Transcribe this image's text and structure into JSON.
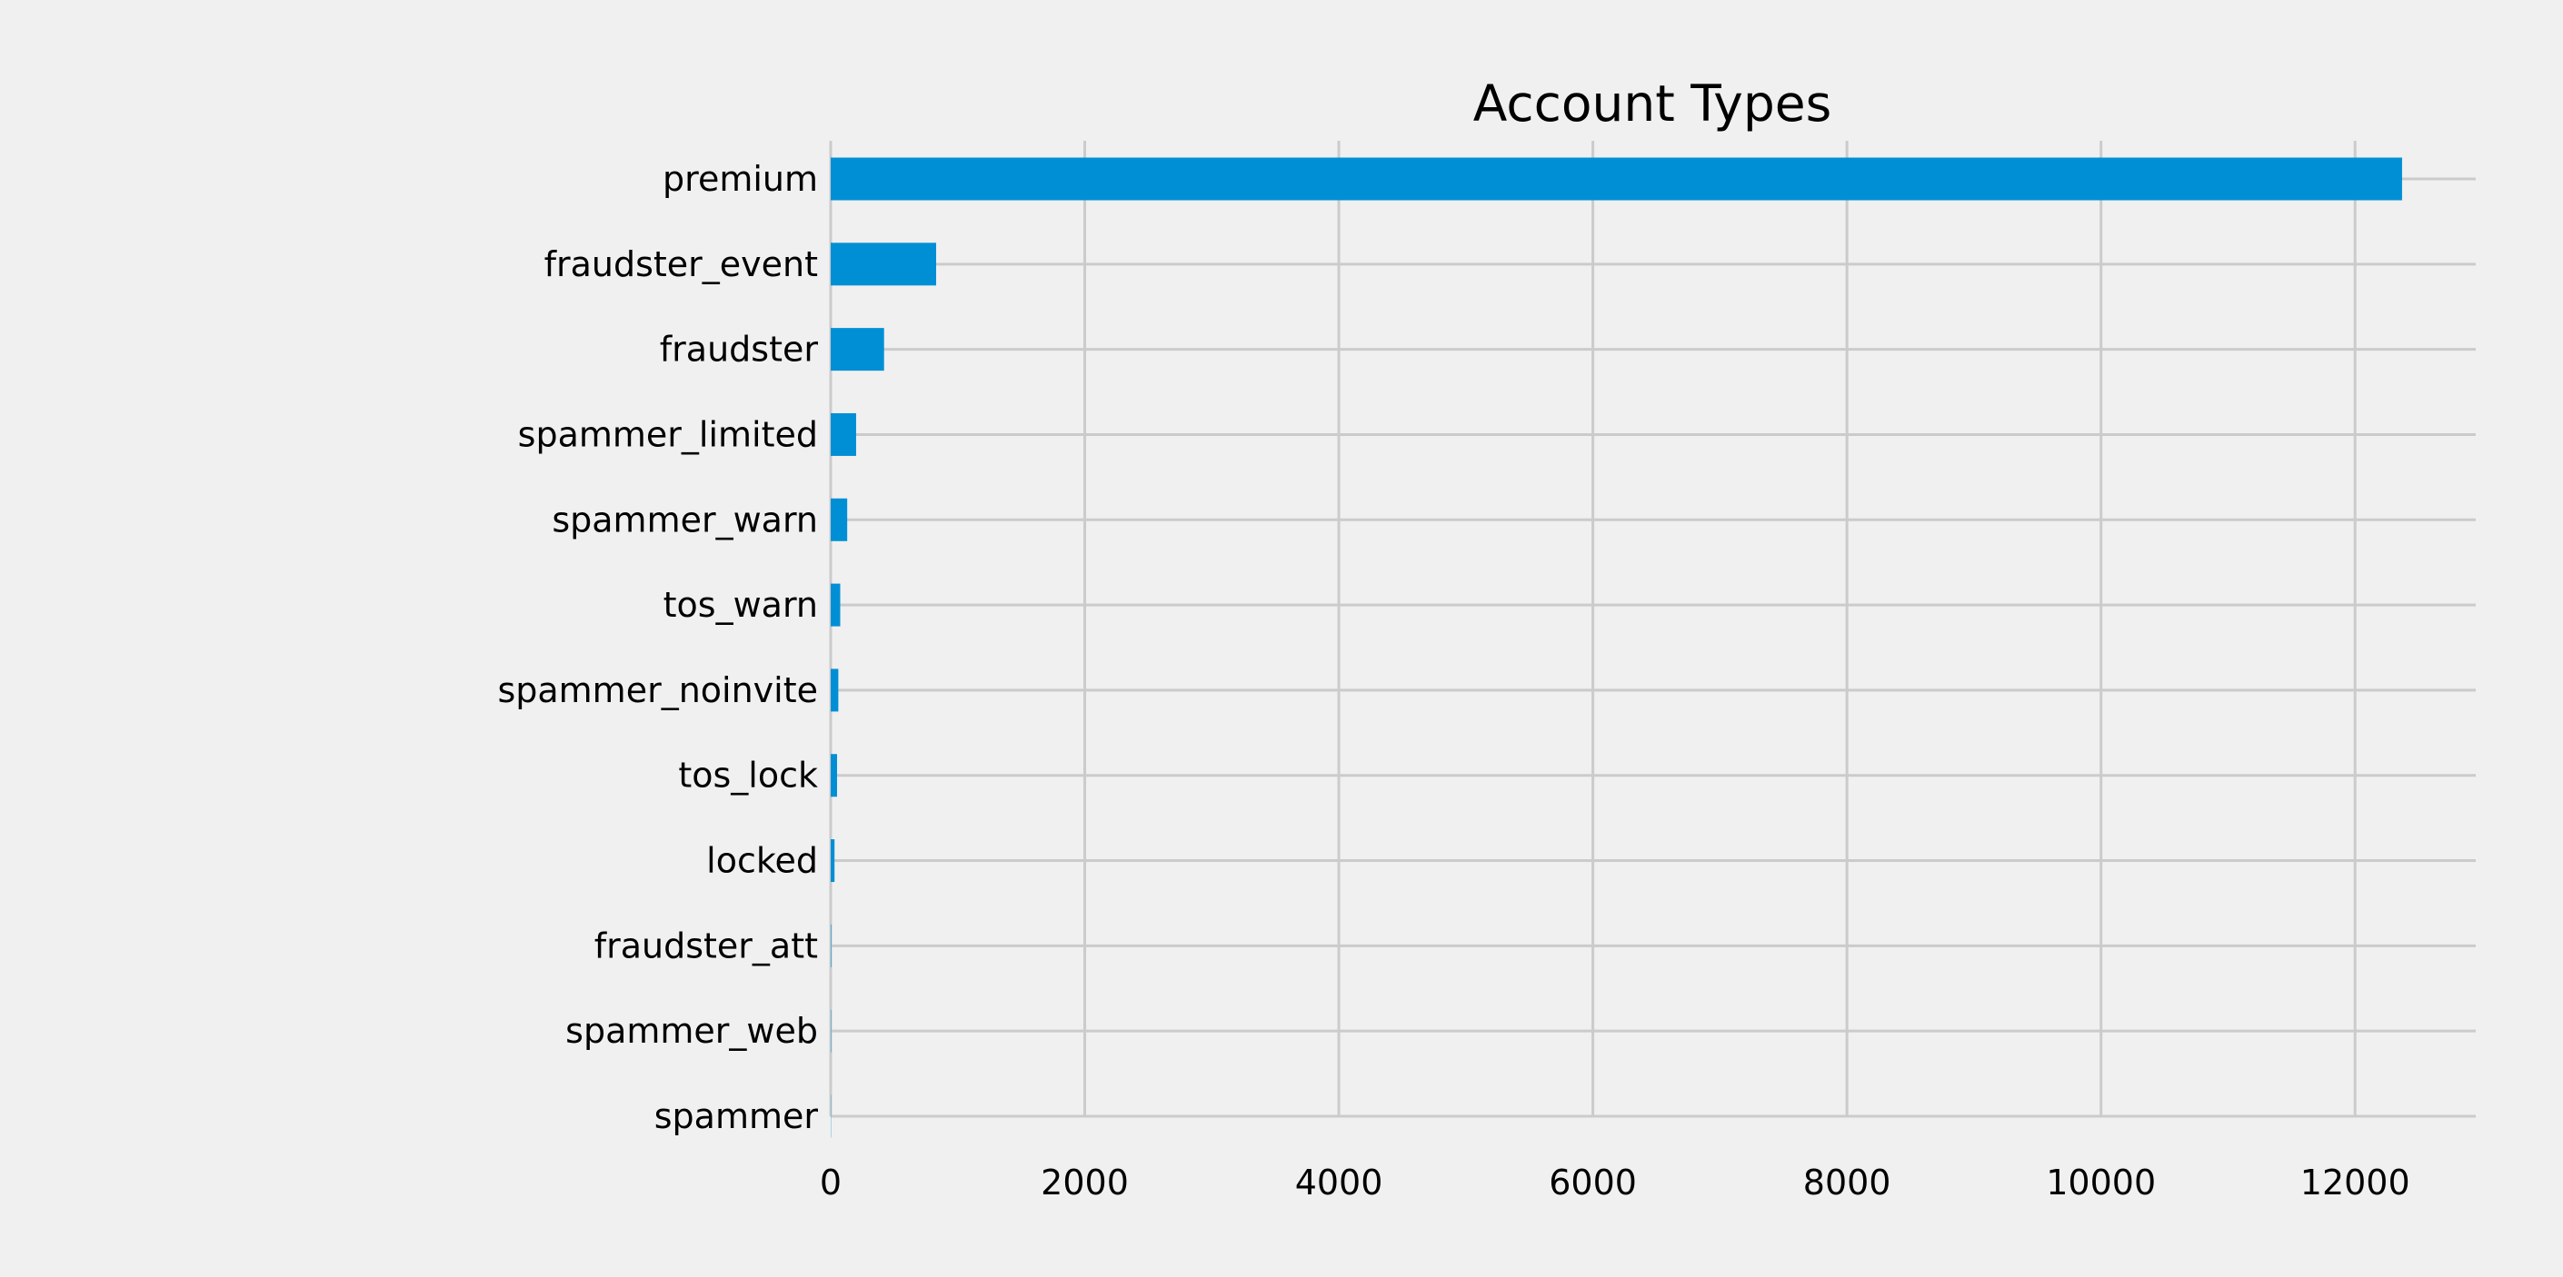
{
  "chart_data": {
    "type": "bar",
    "orientation": "horizontal",
    "title": "Account Types",
    "xlabel": "",
    "ylabel": "",
    "categories": [
      "premium",
      "fraudster_event",
      "fraudster",
      "spammer_limited",
      "spammer_warn",
      "tos_warn",
      "spammer_noinvite",
      "tos_lock",
      "locked",
      "fraudster_att",
      "spammer_web",
      "spammer"
    ],
    "values": [
      12370,
      830,
      420,
      200,
      130,
      75,
      60,
      50,
      30,
      4,
      3,
      2
    ],
    "xlim": [
      0,
      12950
    ],
    "xticks": [
      "0",
      "2000",
      "4000",
      "6000",
      "8000",
      "10000",
      "12000"
    ],
    "xtick_values": [
      0,
      2000,
      4000,
      6000,
      8000,
      10000,
      12000
    ],
    "grid": true,
    "bar_color": "#008fd5",
    "background_color": "#f0f0f0",
    "grid_color": "#cbcbcb"
  }
}
